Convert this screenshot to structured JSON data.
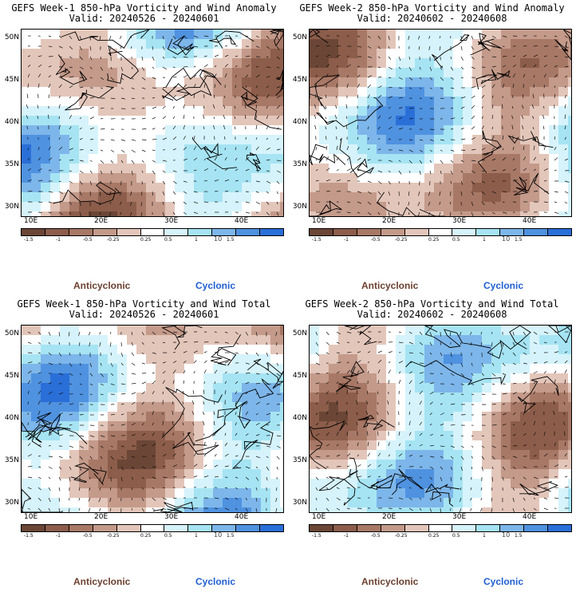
{
  "panels": [
    {
      "title": "GEFS Week-1 850-hPa Vorticity and Wind Anomaly",
      "valid": "Valid: 20240526 - 20240601",
      "seed": 11
    },
    {
      "title": "GEFS Week-2 850-hPa Vorticity and Wind Anomaly",
      "valid": "Valid: 20240602 - 20240608",
      "seed": 23
    },
    {
      "title": "GEFS Week-1 850-hPa Vorticity and Wind Total",
      "valid": "Valid: 20240526 - 20240601",
      "seed": 37
    },
    {
      "title": "GEFS Week-2 850-hPa Vorticity and Wind Total",
      "valid": "Valid: 20240602 - 20240608",
      "seed": 53
    }
  ],
  "lat_labels": [
    "50N",
    "45N",
    "40N",
    "35N",
    "30N"
  ],
  "lon_labels": [
    "10E",
    "20E",
    "30E",
    "40E"
  ],
  "colorbar": {
    "labels": [
      "-1.5",
      "-1",
      "-0.5",
      "-0.25",
      "0.25",
      "0.5",
      "1",
      "1.5"
    ],
    "unit": "10",
    "colors": [
      "#6b4636",
      "#8c5d4a",
      "#a87866",
      "#c49a8a",
      "#e3c6ba",
      "#ffffff",
      "#d6f3fb",
      "#a6e4f3",
      "#7db6ea",
      "#4f92e0",
      "#2a6fd8"
    ]
  },
  "legend": {
    "anticyclonic": "Anticyclonic",
    "cyclonic": "Cyclonic"
  }
}
